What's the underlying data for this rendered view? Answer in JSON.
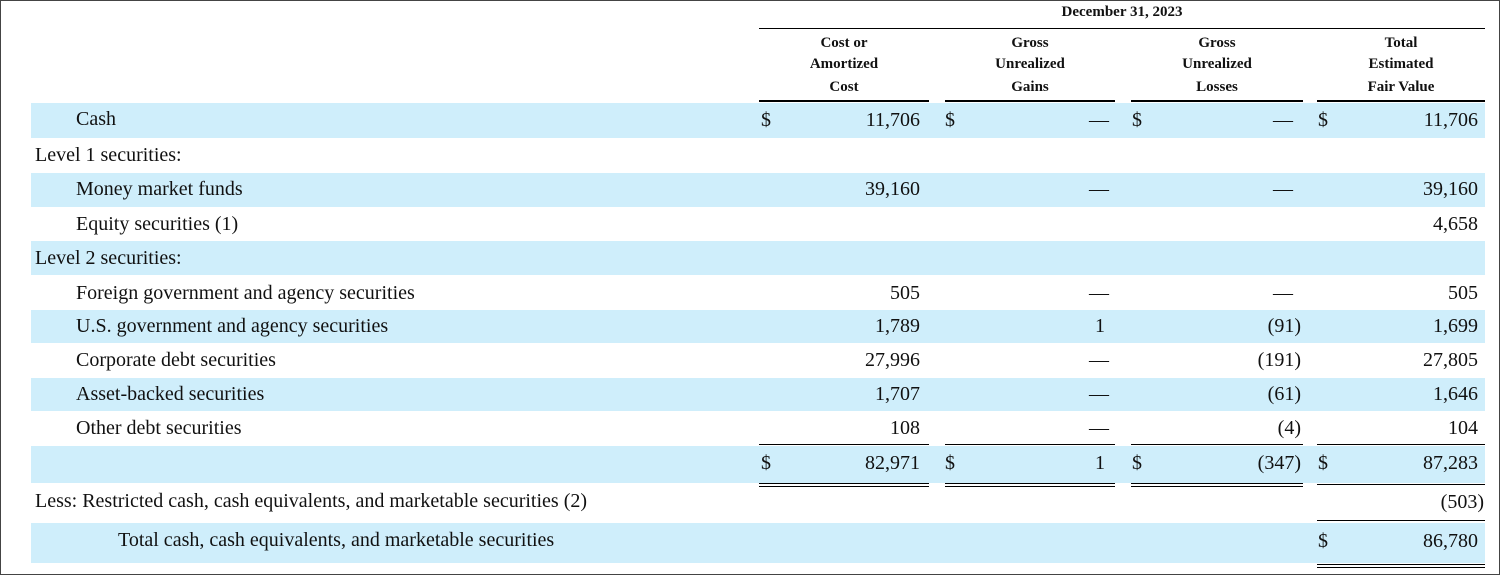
{
  "period_header": "December 31, 2023",
  "columns": [
    {
      "line1": "Cost or",
      "line2": "Amortized",
      "line3": "Cost"
    },
    {
      "line1": "Gross",
      "line2": "Unrealized",
      "line3": "Gains"
    },
    {
      "line1": "Gross",
      "line2": "Unrealized",
      "line3": "Losses"
    },
    {
      "line1": "Total",
      "line2": "Estimated",
      "line3": "Fair Value"
    }
  ],
  "currency_symbol": "$",
  "rows": [
    {
      "label": "Cash",
      "cost": "11,706",
      "gains": "—",
      "losses": "—",
      "fair_value": "11,706"
    },
    {
      "label": "Level 1 securities:",
      "cost": "",
      "gains": "",
      "losses": "",
      "fair_value": ""
    },
    {
      "label": "Money market funds",
      "cost": "39,160",
      "gains": "—",
      "losses": "—",
      "fair_value": "39,160"
    },
    {
      "label": "Equity securities (1)",
      "cost": "",
      "gains": "",
      "losses": "",
      "fair_value": "4,658"
    },
    {
      "label": "Level 2 securities:",
      "cost": "",
      "gains": "",
      "losses": "",
      "fair_value": ""
    },
    {
      "label": "Foreign government and agency securities",
      "cost": "505",
      "gains": "—",
      "losses": "—",
      "fair_value": "505"
    },
    {
      "label": "U.S. government and agency securities",
      "cost": "1,789",
      "gains": "1",
      "losses": "(91)",
      "fair_value": "1,699"
    },
    {
      "label": "Corporate debt securities",
      "cost": "27,996",
      "gains": "—",
      "losses": "(191)",
      "fair_value": "27,805"
    },
    {
      "label": "Asset-backed securities",
      "cost": "1,707",
      "gains": "—",
      "losses": "(61)",
      "fair_value": "1,646"
    },
    {
      "label": "Other debt securities",
      "cost": "108",
      "gains": "—",
      "losses": "(4)",
      "fair_value": "104"
    },
    {
      "label": "",
      "cost": "82,971",
      "gains": "1",
      "losses": "(347)",
      "fair_value": "87,283"
    },
    {
      "label": "Less: Restricted cash, cash equivalents, and marketable securities (2)",
      "cost": "",
      "gains": "",
      "losses": "",
      "fair_value": "(503)"
    },
    {
      "label": "Total cash, cash equivalents, and marketable securities",
      "cost": "",
      "gains": "",
      "losses": "",
      "fair_value": "86,780"
    }
  ],
  "colors": {
    "band": "#cfeefb",
    "text": "#111111",
    "rule": "#000000"
  }
}
